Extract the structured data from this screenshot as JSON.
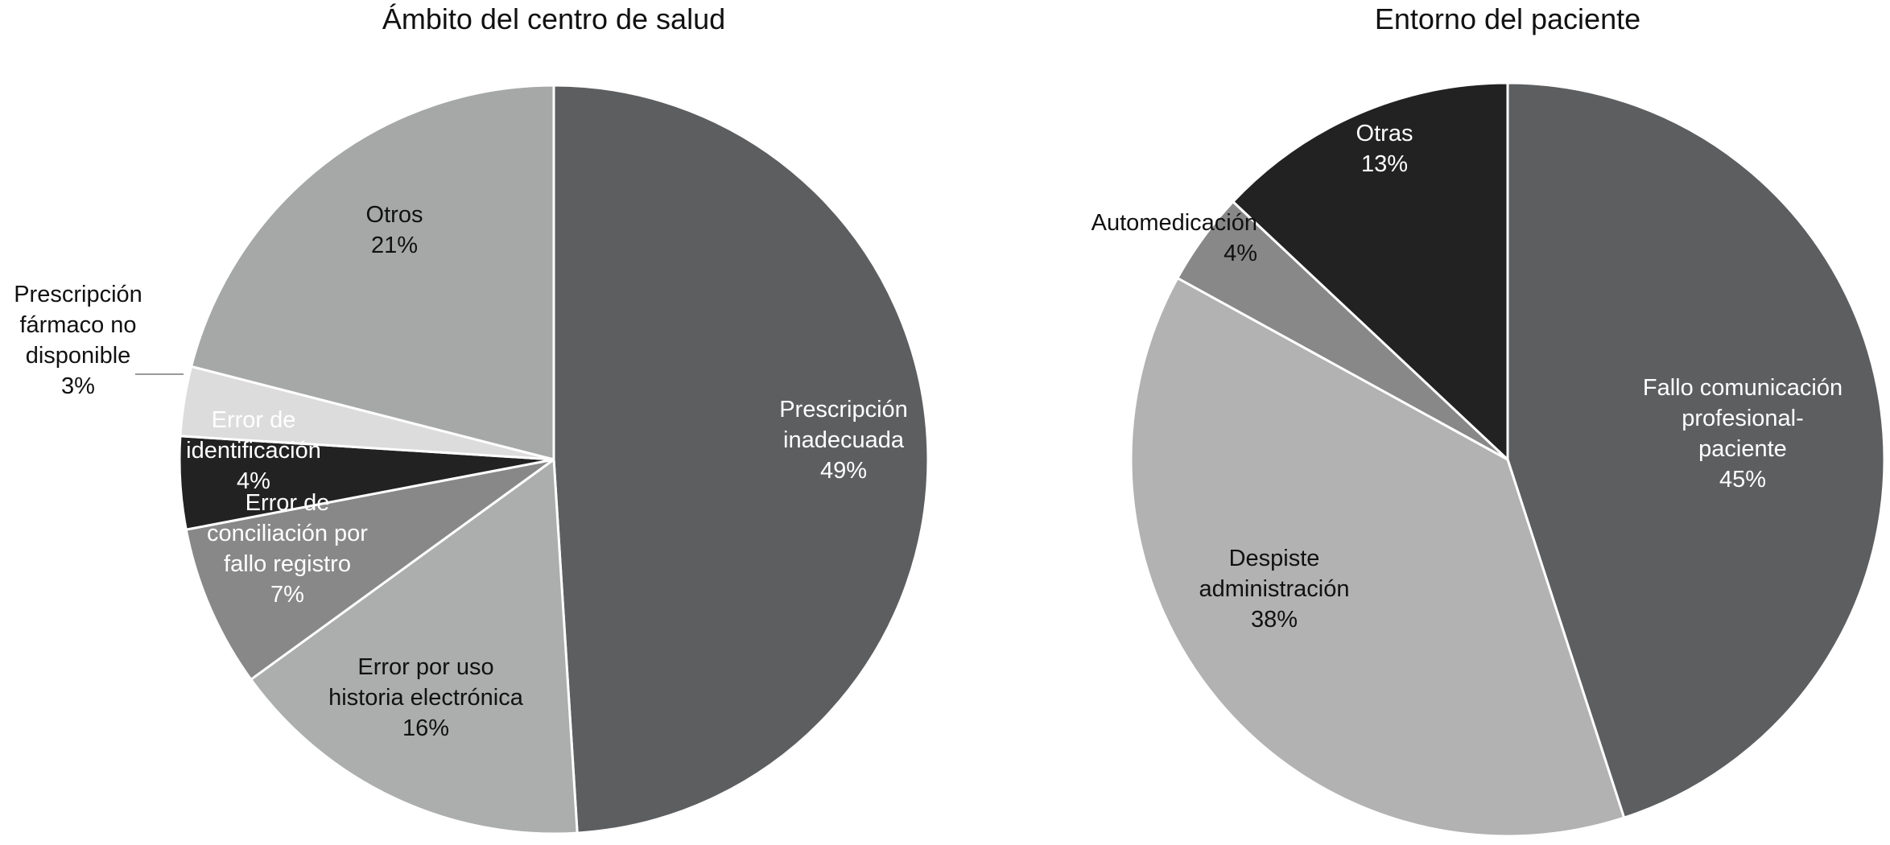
{
  "chart_data": [
    {
      "type": "pie",
      "title": "Ámbito del centro de salud",
      "start": "12 o'clock, clockwise",
      "slices": [
        {
          "label_lines": [
            "Prescripción",
            "inadecuada"
          ],
          "pct_text": "49%",
          "value": 49,
          "color": "#5d5e60",
          "text_color": "#ffffff"
        },
        {
          "label_lines": [
            "Error por uso",
            "historia electrónica"
          ],
          "pct_text": "16%",
          "value": 16,
          "color": "#acadad",
          "text_color": "#111111"
        },
        {
          "label_lines": [
            "Error de",
            "conciliación por",
            "fallo registro"
          ],
          "pct_text": "7%",
          "value": 7,
          "color": "#888888",
          "text_color": "#ffffff"
        },
        {
          "label_lines": [
            "Error de",
            "identificación"
          ],
          "pct_text": "4%",
          "value": 4,
          "color": "#222222",
          "text_color": "#ffffff"
        },
        {
          "label_lines": [
            "Prescripción",
            "fármaco no",
            "disponible"
          ],
          "pct_text": "3%",
          "value": 3,
          "color": "#dcdcdc",
          "text_color": "#111111"
        },
        {
          "label_lines": [
            "Otros"
          ],
          "pct_text": "21%",
          "value": 21,
          "color": "#a6a7a7",
          "text_color": "#111111"
        }
      ]
    },
    {
      "type": "pie",
      "title": "Entorno del paciente",
      "start": "12 o'clock, clockwise",
      "slices": [
        {
          "label_lines": [
            "Fallo comunicación",
            "profesional-",
            "paciente"
          ],
          "pct_text": "45%",
          "value": 45,
          "color": "#5d5e60",
          "text_color": "#ffffff"
        },
        {
          "label_lines": [
            "Despiste",
            "administración"
          ],
          "pct_text": "38%",
          "value": 38,
          "color": "#b2b2b2",
          "text_color": "#111111"
        },
        {
          "label_lines": [
            "Automedicación"
          ],
          "pct_text": "4%",
          "value": 4,
          "color": "#888888",
          "text_color": "#111111"
        },
        {
          "label_lines": [
            "Otras"
          ],
          "pct_text": "13%",
          "value": 13,
          "color": "#222222",
          "text_color": "#ffffff"
        }
      ]
    }
  ]
}
